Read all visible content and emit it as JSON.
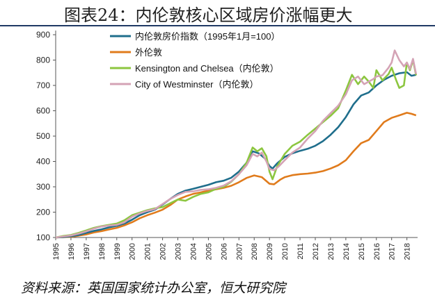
{
  "title": "图表24：内伦敦核心区域房价涨幅更大",
  "source": "资料来源：英国国家统计办公室，恒大研究院",
  "chart_data": {
    "type": "line",
    "ylim": [
      100,
      900
    ],
    "yticks": [
      100,
      200,
      300,
      400,
      500,
      600,
      700,
      800,
      900
    ],
    "xlim": [
      1995,
      2018.7
    ],
    "xticks": [
      "1995",
      "1996",
      "1997",
      "1998",
      "1999",
      "2000",
      "2001",
      "2002",
      "2003",
      "2004",
      "2005",
      "2006",
      "2007",
      "2008",
      "2009",
      "2010",
      "2011",
      "2012",
      "2013",
      "2014",
      "2015",
      "2016",
      "2017",
      "2018"
    ],
    "legend_position": "top-left",
    "series": [
      {
        "name": "内伦敦房价指数（1995年1月=100）",
        "color": "#1f6e8c",
        "points": [
          [
            1995.0,
            100
          ],
          [
            1995.5,
            102
          ],
          [
            1996.0,
            105
          ],
          [
            1996.5,
            110
          ],
          [
            1997.0,
            118
          ],
          [
            1997.5,
            126
          ],
          [
            1998.0,
            132
          ],
          [
            1998.5,
            140
          ],
          [
            1999.0,
            146
          ],
          [
            1999.5,
            155
          ],
          [
            2000.0,
            170
          ],
          [
            2000.5,
            188
          ],
          [
            2001.0,
            200
          ],
          [
            2001.5,
            210
          ],
          [
            2002.0,
            230
          ],
          [
            2002.5,
            252
          ],
          [
            2003.0,
            272
          ],
          [
            2003.5,
            285
          ],
          [
            2004.0,
            292
          ],
          [
            2004.5,
            300
          ],
          [
            2005.0,
            308
          ],
          [
            2005.5,
            318
          ],
          [
            2006.0,
            324
          ],
          [
            2006.5,
            336
          ],
          [
            2007.0,
            360
          ],
          [
            2007.5,
            395
          ],
          [
            2007.9,
            440
          ],
          [
            2008.3,
            432
          ],
          [
            2008.7,
            412
          ],
          [
            2009.0,
            382
          ],
          [
            2009.2,
            372
          ],
          [
            2009.5,
            392
          ],
          [
            2010.0,
            418
          ],
          [
            2010.5,
            432
          ],
          [
            2011.0,
            442
          ],
          [
            2011.5,
            450
          ],
          [
            2012.0,
            462
          ],
          [
            2012.5,
            480
          ],
          [
            2013.0,
            505
          ],
          [
            2013.5,
            535
          ],
          [
            2014.0,
            575
          ],
          [
            2014.5,
            625
          ],
          [
            2015.0,
            660
          ],
          [
            2015.5,
            672
          ],
          [
            2016.0,
            700
          ],
          [
            2016.5,
            722
          ],
          [
            2017.0,
            738
          ],
          [
            2017.5,
            748
          ],
          [
            2018.0,
            752
          ],
          [
            2018.3,
            738
          ],
          [
            2018.6,
            742
          ]
        ]
      },
      {
        "name": "外伦敦",
        "color": "#e07b1c",
        "points": [
          [
            1995.0,
            100
          ],
          [
            1995.5,
            101
          ],
          [
            1996.0,
            103
          ],
          [
            1996.5,
            107
          ],
          [
            1997.0,
            112
          ],
          [
            1997.5,
            120
          ],
          [
            1998.0,
            125
          ],
          [
            1998.5,
            132
          ],
          [
            1999.0,
            138
          ],
          [
            1999.5,
            148
          ],
          [
            2000.0,
            160
          ],
          [
            2000.5,
            176
          ],
          [
            2001.0,
            188
          ],
          [
            2001.5,
            198
          ],
          [
            2002.0,
            210
          ],
          [
            2002.5,
            228
          ],
          [
            2003.0,
            250
          ],
          [
            2003.5,
            262
          ],
          [
            2004.0,
            272
          ],
          [
            2004.5,
            278
          ],
          [
            2005.0,
            285
          ],
          [
            2005.5,
            290
          ],
          [
            2006.0,
            296
          ],
          [
            2006.5,
            304
          ],
          [
            2007.0,
            318
          ],
          [
            2007.5,
            335
          ],
          [
            2008.0,
            345
          ],
          [
            2008.5,
            338
          ],
          [
            2009.0,
            312
          ],
          [
            2009.3,
            310
          ],
          [
            2009.7,
            328
          ],
          [
            2010.0,
            338
          ],
          [
            2010.5,
            346
          ],
          [
            2011.0,
            350
          ],
          [
            2011.5,
            352
          ],
          [
            2012.0,
            356
          ],
          [
            2012.5,
            362
          ],
          [
            2013.0,
            372
          ],
          [
            2013.5,
            385
          ],
          [
            2014.0,
            405
          ],
          [
            2014.5,
            440
          ],
          [
            2015.0,
            472
          ],
          [
            2015.5,
            485
          ],
          [
            2016.0,
            520
          ],
          [
            2016.5,
            555
          ],
          [
            2017.0,
            572
          ],
          [
            2017.5,
            582
          ],
          [
            2018.0,
            592
          ],
          [
            2018.3,
            588
          ],
          [
            2018.6,
            582
          ]
        ]
      },
      {
        "name": "Kensington and Chelsea（内伦敦）",
        "color": "#8cc63f",
        "points": [
          [
            1995.0,
            100
          ],
          [
            1995.5,
            106
          ],
          [
            1996.0,
            110
          ],
          [
            1996.5,
            118
          ],
          [
            1997.0,
            128
          ],
          [
            1997.5,
            138
          ],
          [
            1998.0,
            145
          ],
          [
            1998.5,
            150
          ],
          [
            1999.0,
            155
          ],
          [
            1999.5,
            168
          ],
          [
            2000.0,
            188
          ],
          [
            2000.5,
            198
          ],
          [
            2001.0,
            208
          ],
          [
            2001.5,
            215
          ],
          [
            2002.0,
            220
          ],
          [
            2002.5,
            235
          ],
          [
            2003.0,
            250
          ],
          [
            2003.5,
            245
          ],
          [
            2004.0,
            260
          ],
          [
            2004.5,
            272
          ],
          [
            2005.0,
            278
          ],
          [
            2005.5,
            292
          ],
          [
            2006.0,
            300
          ],
          [
            2006.5,
            320
          ],
          [
            2007.0,
            350
          ],
          [
            2007.5,
            395
          ],
          [
            2007.9,
            455
          ],
          [
            2008.2,
            440
          ],
          [
            2008.5,
            452
          ],
          [
            2008.8,
            420
          ],
          [
            2009.0,
            360
          ],
          [
            2009.2,
            330
          ],
          [
            2009.5,
            380
          ],
          [
            2010.0,
            430
          ],
          [
            2010.5,
            462
          ],
          [
            2011.0,
            478
          ],
          [
            2011.5,
            505
          ],
          [
            2012.0,
            530
          ],
          [
            2012.5,
            555
          ],
          [
            2013.0,
            580
          ],
          [
            2013.5,
            610
          ],
          [
            2014.0,
            680
          ],
          [
            2014.4,
            742
          ],
          [
            2014.8,
            705
          ],
          [
            2015.2,
            735
          ],
          [
            2015.5,
            715
          ],
          [
            2015.8,
            690
          ],
          [
            2016.0,
            760
          ],
          [
            2016.4,
            720
          ],
          [
            2016.8,
            745
          ],
          [
            2017.0,
            770
          ],
          [
            2017.3,
            720
          ],
          [
            2017.5,
            690
          ],
          [
            2017.8,
            700
          ],
          [
            2018.0,
            790
          ],
          [
            2018.2,
            760
          ],
          [
            2018.4,
            800
          ],
          [
            2018.6,
            740
          ]
        ]
      },
      {
        "name": "City of Westminster（内伦敦）",
        "color": "#d4a3b5",
        "points": [
          [
            1995.0,
            100
          ],
          [
            1995.5,
            104
          ],
          [
            1996.0,
            108
          ],
          [
            1996.5,
            115
          ],
          [
            1997.0,
            124
          ],
          [
            1997.5,
            135
          ],
          [
            1998.0,
            143
          ],
          [
            1998.5,
            147
          ],
          [
            1999.0,
            150
          ],
          [
            1999.5,
            160
          ],
          [
            2000.0,
            182
          ],
          [
            2000.5,
            195
          ],
          [
            2001.0,
            205
          ],
          [
            2001.5,
            212
          ],
          [
            2002.0,
            232
          ],
          [
            2002.5,
            252
          ],
          [
            2003.0,
            268
          ],
          [
            2003.5,
            280
          ],
          [
            2004.0,
            282
          ],
          [
            2004.5,
            288
          ],
          [
            2005.0,
            290
          ],
          [
            2005.5,
            296
          ],
          [
            2006.0,
            305
          ],
          [
            2006.5,
            322
          ],
          [
            2007.0,
            350
          ],
          [
            2007.5,
            385
          ],
          [
            2007.9,
            430
          ],
          [
            2008.2,
            420
          ],
          [
            2008.5,
            435
          ],
          [
            2008.8,
            400
          ],
          [
            2009.0,
            370
          ],
          [
            2009.3,
            365
          ],
          [
            2009.6,
            380
          ],
          [
            2010.0,
            405
          ],
          [
            2010.5,
            435
          ],
          [
            2011.0,
            455
          ],
          [
            2011.5,
            490
          ],
          [
            2012.0,
            520
          ],
          [
            2012.5,
            560
          ],
          [
            2013.0,
            590
          ],
          [
            2013.5,
            620
          ],
          [
            2014.0,
            665
          ],
          [
            2014.4,
            720
          ],
          [
            2014.8,
            735
          ],
          [
            2015.2,
            705
          ],
          [
            2015.5,
            715
          ],
          [
            2015.8,
            725
          ],
          [
            2016.0,
            735
          ],
          [
            2016.4,
            740
          ],
          [
            2016.8,
            770
          ],
          [
            2017.0,
            790
          ],
          [
            2017.2,
            838
          ],
          [
            2017.5,
            800
          ],
          [
            2017.8,
            775
          ],
          [
            2018.0,
            790
          ],
          [
            2018.2,
            765
          ],
          [
            2018.4,
            805
          ],
          [
            2018.6,
            745
          ]
        ]
      }
    ]
  }
}
